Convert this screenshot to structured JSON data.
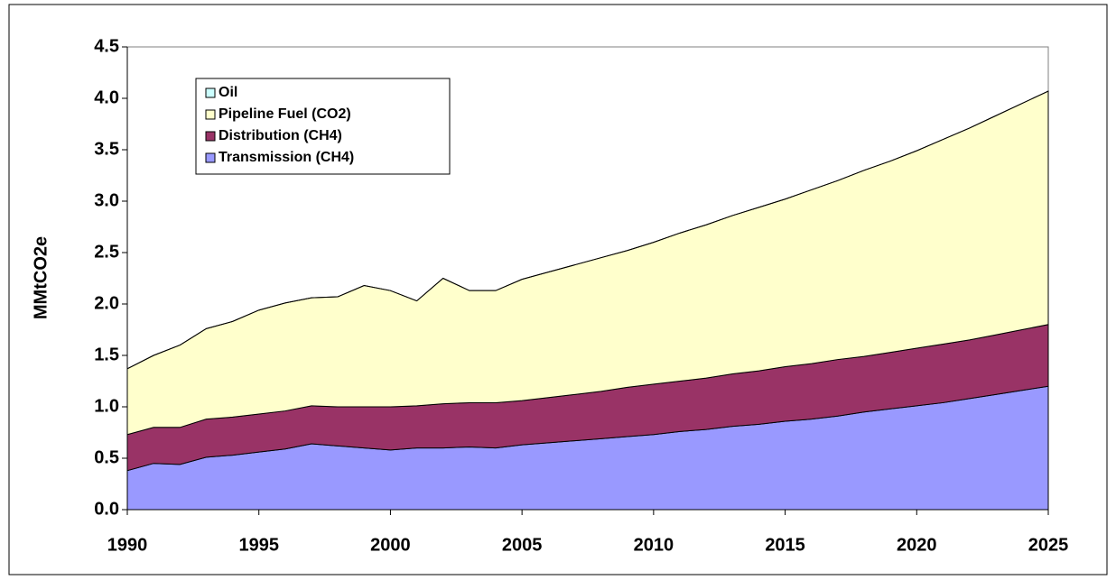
{
  "chart_data": {
    "type": "area",
    "y_label": "MMtCO2e",
    "x": [
      1990,
      1991,
      1992,
      1993,
      1994,
      1995,
      1996,
      1997,
      1998,
      1999,
      2000,
      2001,
      2002,
      2003,
      2004,
      2005,
      2006,
      2007,
      2008,
      2009,
      2010,
      2011,
      2012,
      2013,
      2014,
      2015,
      2016,
      2017,
      2018,
      2019,
      2020,
      2021,
      2022,
      2023,
      2024,
      2025
    ],
    "series": [
      {
        "name": "Transmission (CH4)",
        "color": "#9999ff",
        "values": [
          0.38,
          0.45,
          0.44,
          0.51,
          0.53,
          0.56,
          0.59,
          0.64,
          0.62,
          0.6,
          0.58,
          0.6,
          0.6,
          0.61,
          0.6,
          0.63,
          0.65,
          0.67,
          0.69,
          0.71,
          0.73,
          0.76,
          0.78,
          0.81,
          0.83,
          0.86,
          0.88,
          0.91,
          0.95,
          0.98,
          1.01,
          1.04,
          1.08,
          1.12,
          1.16,
          1.2
        ]
      },
      {
        "name": "Distribution (CH4)",
        "color": "#993366",
        "values": [
          0.35,
          0.35,
          0.36,
          0.37,
          0.37,
          0.37,
          0.37,
          0.37,
          0.38,
          0.4,
          0.42,
          0.41,
          0.43,
          0.43,
          0.44,
          0.43,
          0.44,
          0.45,
          0.46,
          0.48,
          0.49,
          0.49,
          0.5,
          0.51,
          0.52,
          0.53,
          0.54,
          0.55,
          0.54,
          0.55,
          0.56,
          0.57,
          0.57,
          0.58,
          0.59,
          0.6
        ]
      },
      {
        "name": "Pipeline Fuel (CO2)",
        "color": "#ffffcc",
        "values": [
          0.64,
          0.7,
          0.8,
          0.88,
          0.93,
          1.01,
          1.05,
          1.05,
          1.07,
          1.18,
          1.13,
          1.02,
          1.22,
          1.09,
          1.09,
          1.18,
          1.22,
          1.26,
          1.3,
          1.33,
          1.38,
          1.44,
          1.49,
          1.54,
          1.59,
          1.63,
          1.69,
          1.74,
          1.81,
          1.86,
          1.92,
          1.99,
          2.06,
          2.13,
          2.2,
          2.27
        ]
      },
      {
        "name": "Oil",
        "color": "#ccffff",
        "values": [
          0,
          0,
          0,
          0,
          0,
          0,
          0,
          0,
          0,
          0,
          0,
          0,
          0,
          0,
          0,
          0,
          0,
          0,
          0,
          0,
          0,
          0,
          0,
          0,
          0,
          0,
          0,
          0,
          0,
          0,
          0,
          0,
          0,
          0,
          0,
          0
        ]
      }
    ],
    "stacked": true,
    "xlim": [
      1990,
      2025
    ],
    "xticks": [
      1990,
      1995,
      2000,
      2005,
      2010,
      2015,
      2020,
      2025
    ],
    "ylim": [
      0,
      4.5
    ],
    "yticks": [
      {
        "value": 0,
        "label": "0.0"
      },
      {
        "value": 0.5,
        "label": "0.5"
      },
      {
        "value": 1,
        "label": "1.0"
      },
      {
        "value": 1.5,
        "label": "1.5"
      },
      {
        "value": 2,
        "label": "2.0"
      },
      {
        "value": 2.5,
        "label": "2.5"
      },
      {
        "value": 3,
        "label": "3.0"
      },
      {
        "value": 3.5,
        "label": "3.5"
      },
      {
        "value": 4,
        "label": "4.0"
      },
      {
        "value": 4.5,
        "label": "4.5"
      }
    ],
    "legend": "upper left"
  }
}
